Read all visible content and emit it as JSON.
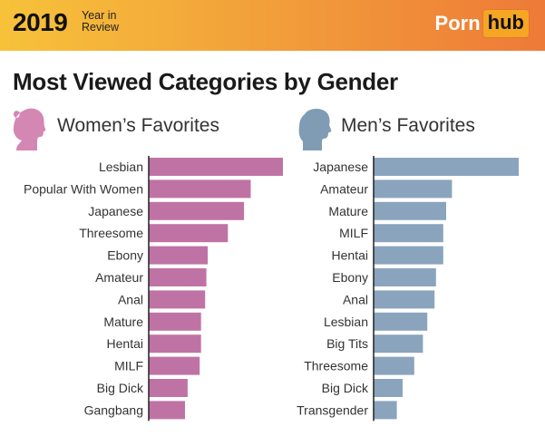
{
  "header": {
    "year": "2019",
    "year_sub_1": "Year in",
    "year_sub_2": "Review",
    "brand_part1": "Porn",
    "brand_part2": "hub"
  },
  "title": "Most Viewed Categories by Gender",
  "colors": {
    "women_bar": "#bf73a4",
    "men_bar": "#8aa4bd",
    "women_icon": "#d487b3",
    "men_icon": "#7f9cb4",
    "axis": "#222222"
  },
  "icons": {
    "women": "woman-head-silhouette-icon",
    "men": "man-head-silhouette-icon"
  },
  "chart_data": [
    {
      "type": "bar",
      "orientation": "horizontal",
      "title": "Women’s Favorites",
      "categories": [
        "Lesbian",
        "Popular With Women",
        "Japanese",
        "Threesome",
        "Ebony",
        "Amateur",
        "Anal",
        "Mature",
        "Hentai",
        "MILF",
        "Big Dick",
        "Gangbang"
      ],
      "values": [
        100,
        76,
        71,
        59,
        44,
        43,
        42,
        39,
        39,
        38,
        29,
        27
      ],
      "xlabel": "",
      "ylabel": "",
      "xlim": [
        0,
        100
      ]
    },
    {
      "type": "bar",
      "orientation": "horizontal",
      "title": "Men’s Favorites",
      "categories": [
        "Japanese",
        "Amateur",
        "Mature",
        "MILF",
        "Hentai",
        "Ebony",
        "Anal",
        "Lesbian",
        "Big Tits",
        "Threesome",
        "Big Dick",
        "Transgender"
      ],
      "values": [
        100,
        54,
        50,
        48,
        48,
        43,
        42,
        37,
        34,
        28,
        20,
        16
      ],
      "xlabel": "",
      "ylabel": "",
      "xlim": [
        0,
        100
      ]
    }
  ]
}
